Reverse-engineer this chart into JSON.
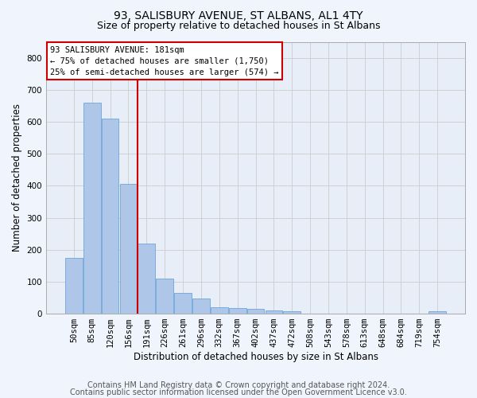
{
  "title_line1": "93, SALISBURY AVENUE, ST ALBANS, AL1 4TY",
  "title_line2": "Size of property relative to detached houses in St Albans",
  "xlabel": "Distribution of detached houses by size in St Albans",
  "ylabel": "Number of detached properties",
  "footer_line1": "Contains HM Land Registry data © Crown copyright and database right 2024.",
  "footer_line2": "Contains public sector information licensed under the Open Government Licence v3.0.",
  "categories": [
    "50sqm",
    "85sqm",
    "120sqm",
    "156sqm",
    "191sqm",
    "226sqm",
    "261sqm",
    "296sqm",
    "332sqm",
    "367sqm",
    "402sqm",
    "437sqm",
    "472sqm",
    "508sqm",
    "543sqm",
    "578sqm",
    "613sqm",
    "648sqm",
    "684sqm",
    "719sqm",
    "754sqm"
  ],
  "values": [
    175,
    660,
    610,
    405,
    220,
    110,
    65,
    47,
    20,
    17,
    15,
    10,
    7,
    0,
    0,
    0,
    0,
    0,
    0,
    0,
    8
  ],
  "bar_color": "#aec6e8",
  "bar_edge_color": "#5b9bd5",
  "bar_edge_width": 0.5,
  "vline_color": "#cc0000",
  "annotation_text": "93 SALISBURY AVENUE: 181sqm\n← 75% of detached houses are smaller (1,750)\n25% of semi-detached houses are larger (574) →",
  "annotation_box_color": "#ffffff",
  "annotation_box_edge_color": "#cc0000",
  "ylim": [
    0,
    850
  ],
  "yticks": [
    0,
    100,
    200,
    300,
    400,
    500,
    600,
    700,
    800
  ],
  "grid_color": "#cccccc",
  "background_color": "#e8eef8",
  "fig_background_color": "#f0f4fc",
  "title_fontsize": 10,
  "subtitle_fontsize": 9,
  "axis_label_fontsize": 8.5,
  "tick_fontsize": 7.5,
  "footer_fontsize": 7,
  "annotation_fontsize": 7.5
}
